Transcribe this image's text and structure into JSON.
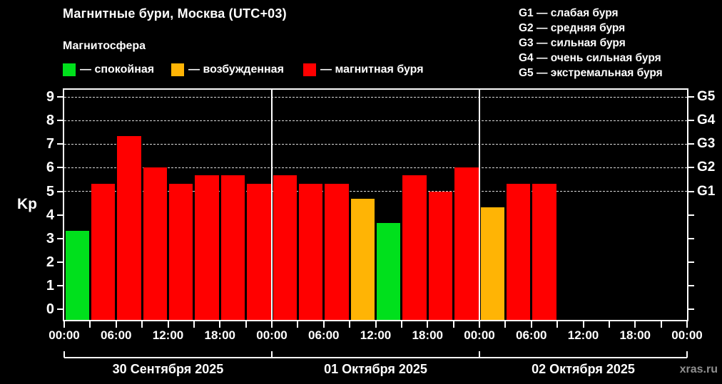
{
  "title": "Магнитные бури, Москва (UTC+03)",
  "subtitle": "Магнитосфера",
  "watermark": "xras.ru",
  "legend": [
    {
      "status": "quiet",
      "label": "— спокойная",
      "color": "#00e01c"
    },
    {
      "status": "unsettled",
      "label": "— возбужденная",
      "color": "#ffb405"
    },
    {
      "status": "storm",
      "label": "— магнитная буря",
      "color": "#ff0000"
    }
  ],
  "storm_scale": [
    "G1 — слабая буря",
    "G2 — средняя буря",
    "G3 — сильная буря",
    "G4 — очень сильная буря",
    "G5 — экстремальная буря"
  ],
  "chart_data": {
    "type": "bar",
    "title": "Магнитные бури, Москва (UTC+03)",
    "ylabel": "Kp",
    "ylim": [
      0,
      9
    ],
    "yticks": [
      0,
      1,
      2,
      3,
      4,
      5,
      6,
      7,
      8,
      9
    ],
    "grid_levels_kp": [
      5,
      6,
      7,
      8,
      9
    ],
    "right_axis": [
      {
        "label": "G1",
        "kp": 5
      },
      {
        "label": "G2",
        "kp": 6
      },
      {
        "label": "G3",
        "kp": 7
      },
      {
        "label": "G4",
        "kp": 8
      },
      {
        "label": "G5",
        "kp": 9
      }
    ],
    "x_tick_hours": [
      0,
      6,
      12,
      18,
      24,
      30,
      36,
      42,
      48,
      54,
      60,
      66,
      72
    ],
    "x_tick_labels": [
      "00:00",
      "06:00",
      "12:00",
      "18:00",
      "00:00",
      "06:00",
      "12:00",
      "18:00",
      "00:00",
      "06:00",
      "12:00",
      "18:00",
      "00:00"
    ],
    "bar_interval_hours": 3,
    "days": [
      {
        "date": "30 Сентября 2025",
        "bars": [
          {
            "start_hour": 0,
            "kp": 3.33,
            "status": "quiet"
          },
          {
            "start_hour": 3,
            "kp": 5.33,
            "status": "storm"
          },
          {
            "start_hour": 6,
            "kp": 7.33,
            "status": "storm"
          },
          {
            "start_hour": 9,
            "kp": 6.0,
            "status": "storm"
          },
          {
            "start_hour": 12,
            "kp": 5.33,
            "status": "storm"
          },
          {
            "start_hour": 15,
            "kp": 5.67,
            "status": "storm"
          },
          {
            "start_hour": 18,
            "kp": 5.67,
            "status": "storm"
          },
          {
            "start_hour": 21,
            "kp": 5.33,
            "status": "storm"
          }
        ]
      },
      {
        "date": "01 Октября 2025",
        "bars": [
          {
            "start_hour": 0,
            "kp": 5.67,
            "status": "storm"
          },
          {
            "start_hour": 3,
            "kp": 5.33,
            "status": "storm"
          },
          {
            "start_hour": 6,
            "kp": 5.33,
            "status": "storm"
          },
          {
            "start_hour": 9,
            "kp": 4.67,
            "status": "unsettled"
          },
          {
            "start_hour": 12,
            "kp": 3.67,
            "status": "quiet"
          },
          {
            "start_hour": 15,
            "kp": 5.67,
            "status": "storm"
          },
          {
            "start_hour": 18,
            "kp": 5.0,
            "status": "storm"
          },
          {
            "start_hour": 21,
            "kp": 6.0,
            "status": "storm"
          }
        ]
      },
      {
        "date": "02 Октября 2025",
        "bars": [
          {
            "start_hour": 0,
            "kp": 4.33,
            "status": "unsettled"
          },
          {
            "start_hour": 3,
            "kp": 5.33,
            "status": "storm"
          },
          {
            "start_hour": 6,
            "kp": 5.33,
            "status": "storm"
          }
        ]
      }
    ]
  }
}
